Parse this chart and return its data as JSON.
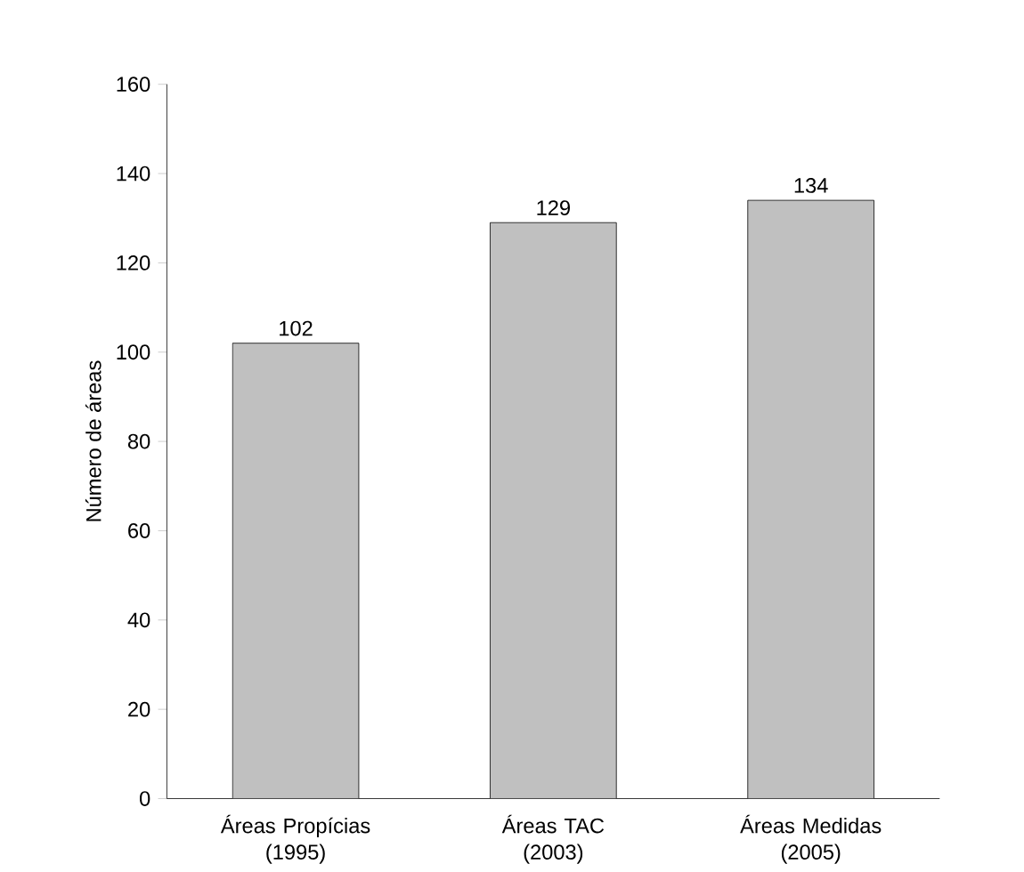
{
  "chart_data": {
    "type": "bar",
    "ylabel": "Número de áreas",
    "categories": [
      "Áreas Propícias (1995)",
      "Áreas TAC (2003)",
      "Áreas Medidas (2005)"
    ],
    "values": [
      102,
      129,
      134
    ],
    "color": "#c0c0c0",
    "ylim": [
      0,
      160
    ],
    "yticks": [
      0,
      20,
      40,
      60,
      80,
      100,
      120,
      140,
      160
    ],
    "data_labels": true
  }
}
